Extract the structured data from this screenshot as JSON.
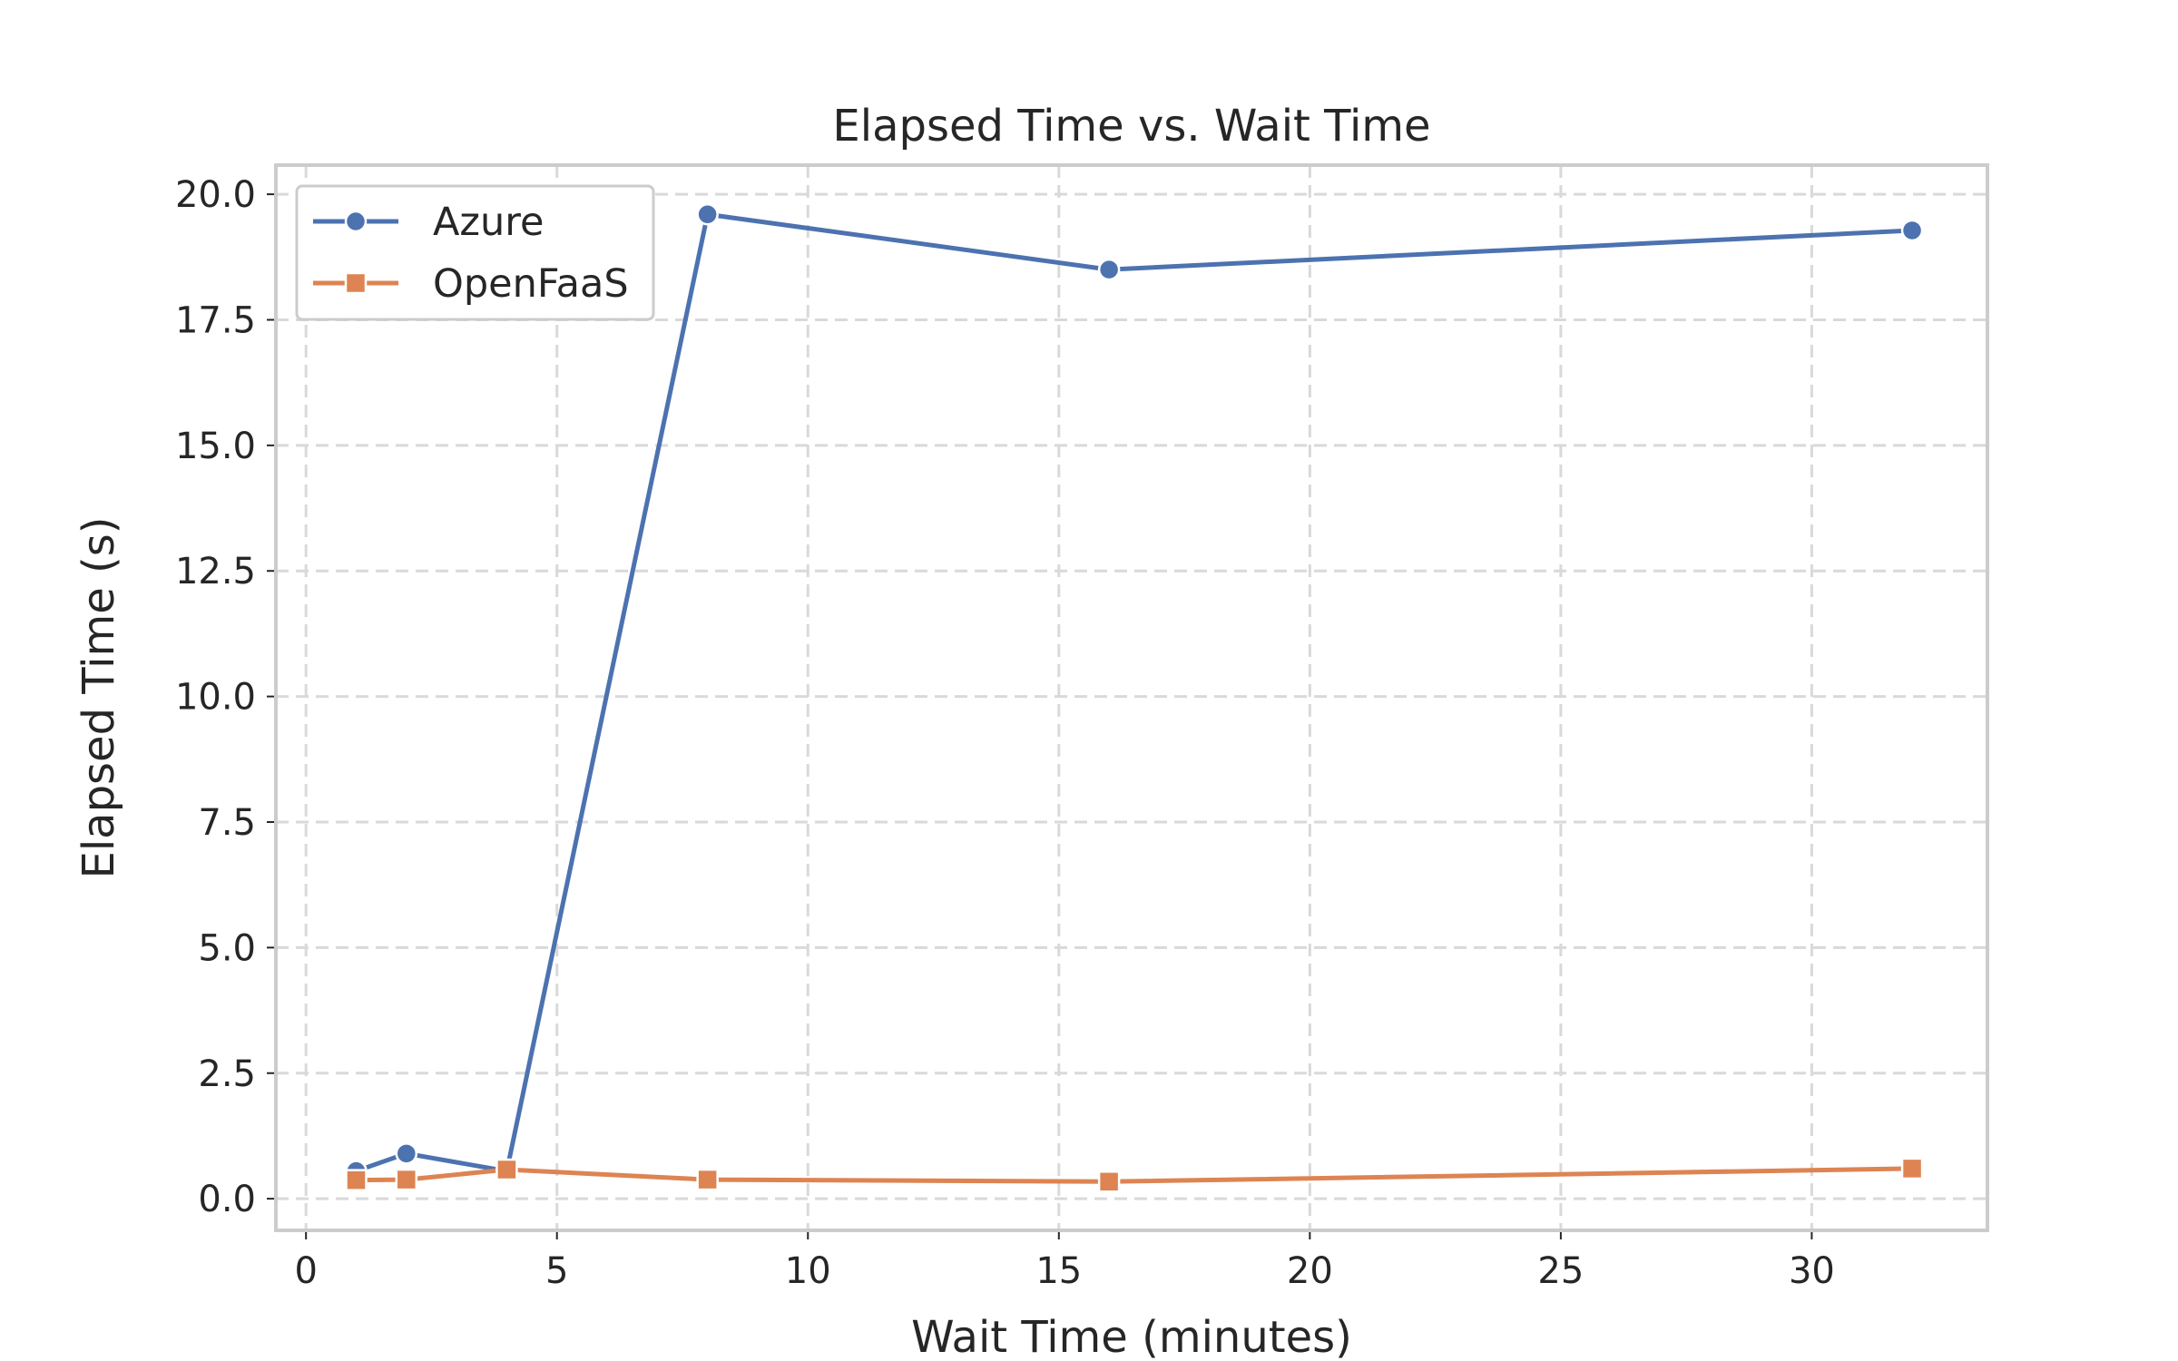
{
  "chart_data": {
    "type": "line",
    "title": "Elapsed Time vs. Wait Time",
    "xlabel": "Wait Time (minutes)",
    "ylabel": "Elapsed Time (s)",
    "xlim": [
      -0.6,
      33.5
    ],
    "ylim": [
      -0.63,
      20.58
    ],
    "xticks": [
      0,
      5,
      10,
      15,
      20,
      25,
      30
    ],
    "yticks": [
      0.0,
      2.5,
      5.0,
      7.5,
      10.0,
      12.5,
      15.0,
      17.5,
      20.0
    ],
    "xtick_labels": [
      "0",
      "5",
      "10",
      "15",
      "20",
      "25",
      "30"
    ],
    "ytick_labels": [
      "0.0",
      "2.5",
      "5.0",
      "7.5",
      "10.0",
      "12.5",
      "15.0",
      "17.5",
      "20.0"
    ],
    "grid": true,
    "legend_position": "upper-left",
    "x": [
      1,
      2,
      4,
      8,
      16,
      32
    ],
    "series": [
      {
        "name": "Azure",
        "values": [
          0.55,
          0.9,
          0.55,
          19.6,
          18.5,
          19.28
        ],
        "color": "#4c72b0",
        "marker": "circle"
      },
      {
        "name": "OpenFaaS",
        "values": [
          0.37,
          0.38,
          0.58,
          0.38,
          0.34,
          0.6
        ],
        "color": "#dd8452",
        "marker": "square"
      }
    ]
  }
}
